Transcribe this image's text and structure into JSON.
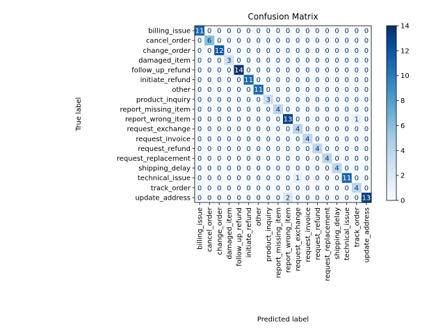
{
  "chart_data": {
    "type": "heatmap",
    "title": "Confusion Matrix",
    "xlabel": "Predicted label",
    "ylabel": "True label",
    "labels": [
      "billing_issue",
      "cancel_order",
      "change_order",
      "damaged_item",
      "follow_up_refund",
      "initiate_refund",
      "other",
      "product_inquiry",
      "report_missing_item",
      "report_wrong_item",
      "request_exchange",
      "request_invoice",
      "request_refund",
      "request_replacement",
      "shipping_delay",
      "technical_issue",
      "track_order",
      "update_address"
    ],
    "matrix": [
      [
        11,
        0,
        0,
        0,
        0,
        0,
        0,
        0,
        0,
        0,
        0,
        0,
        0,
        0,
        0,
        0,
        0,
        0
      ],
      [
        0,
        6,
        0,
        0,
        0,
        0,
        0,
        0,
        0,
        0,
        0,
        0,
        0,
        0,
        0,
        0,
        0,
        0
      ],
      [
        0,
        0,
        12,
        0,
        0,
        0,
        0,
        0,
        0,
        0,
        0,
        0,
        0,
        0,
        0,
        0,
        0,
        0
      ],
      [
        0,
        0,
        0,
        3,
        0,
        0,
        0,
        0,
        0,
        0,
        0,
        0,
        0,
        0,
        0,
        0,
        0,
        0
      ],
      [
        0,
        0,
        0,
        0,
        14,
        0,
        0,
        0,
        0,
        0,
        0,
        0,
        0,
        0,
        0,
        0,
        0,
        0
      ],
      [
        0,
        0,
        0,
        0,
        0,
        11,
        0,
        0,
        0,
        0,
        0,
        0,
        0,
        0,
        0,
        0,
        0,
        0
      ],
      [
        0,
        0,
        0,
        0,
        0,
        0,
        11,
        0,
        0,
        0,
        0,
        0,
        0,
        0,
        0,
        0,
        0,
        0
      ],
      [
        0,
        0,
        0,
        0,
        0,
        0,
        0,
        3,
        0,
        0,
        0,
        0,
        0,
        0,
        0,
        0,
        0,
        0
      ],
      [
        0,
        0,
        0,
        0,
        0,
        0,
        0,
        0,
        4,
        0,
        0,
        0,
        0,
        0,
        0,
        0,
        0,
        0
      ],
      [
        0,
        0,
        0,
        0,
        0,
        0,
        0,
        0,
        0,
        13,
        0,
        0,
        0,
        0,
        0,
        0,
        1,
        0
      ],
      [
        0,
        0,
        0,
        0,
        0,
        0,
        0,
        0,
        0,
        0,
        4,
        0,
        0,
        0,
        0,
        0,
        0,
        0
      ],
      [
        0,
        0,
        0,
        0,
        0,
        0,
        0,
        0,
        0,
        0,
        0,
        4,
        0,
        0,
        0,
        0,
        0,
        0
      ],
      [
        0,
        0,
        0,
        0,
        0,
        0,
        0,
        0,
        0,
        0,
        0,
        0,
        4,
        0,
        0,
        0,
        0,
        0
      ],
      [
        0,
        0,
        0,
        0,
        0,
        0,
        0,
        0,
        0,
        0,
        0,
        0,
        0,
        4,
        0,
        0,
        0,
        0
      ],
      [
        0,
        0,
        0,
        0,
        0,
        0,
        0,
        0,
        0,
        0,
        0,
        0,
        0,
        0,
        4,
        0,
        0,
        0
      ],
      [
        0,
        0,
        0,
        0,
        0,
        0,
        0,
        0,
        0,
        0,
        1,
        0,
        0,
        0,
        0,
        11,
        0,
        0
      ],
      [
        0,
        0,
        0,
        0,
        0,
        0,
        0,
        0,
        0,
        0,
        0,
        0,
        0,
        0,
        0,
        0,
        4,
        0
      ],
      [
        0,
        0,
        0,
        0,
        0,
        0,
        0,
        0,
        0,
        2,
        0,
        0,
        0,
        0,
        0,
        0,
        0,
        13
      ]
    ],
    "colormap": "Blues",
    "colorbar": {
      "range": [
        0,
        14
      ],
      "ticks": [
        0,
        2,
        4,
        6,
        8,
        10,
        12,
        14
      ]
    }
  }
}
